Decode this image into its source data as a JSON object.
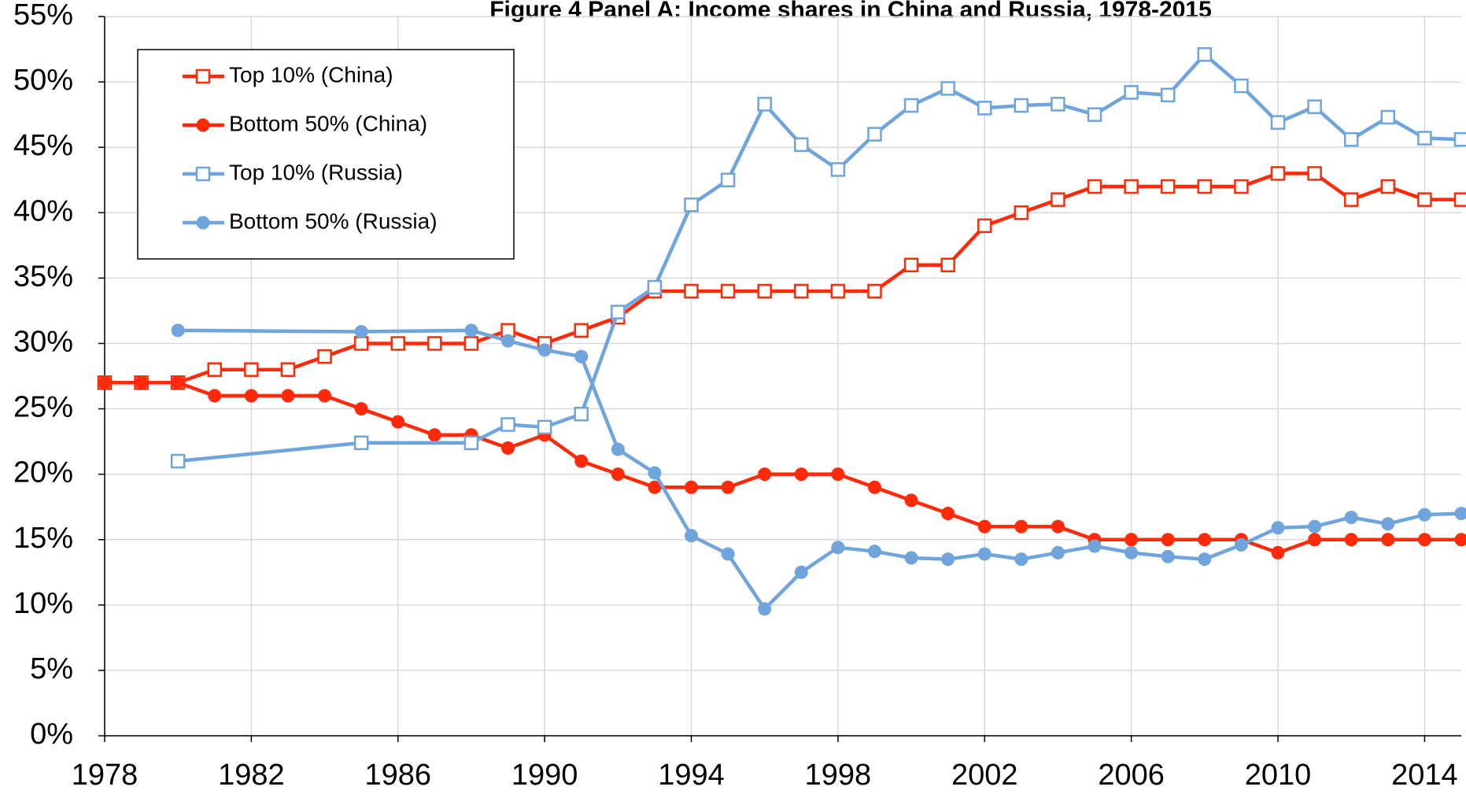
{
  "chart_data": {
    "type": "line",
    "title": "Figure 4 Panel A: Income shares in China and Russia, 1978-2015",
    "xlim": [
      1978,
      2015
    ],
    "xticks": [
      1978,
      1982,
      1986,
      1990,
      1994,
      1998,
      2002,
      2006,
      2010,
      2014
    ],
    "ylim": [
      0,
      55
    ],
    "yticks": [
      {
        "value": 0,
        "label": "0%"
      },
      {
        "value": 5,
        "label": "5%"
      },
      {
        "value": 10,
        "label": "10%"
      },
      {
        "value": 15,
        "label": "15%"
      },
      {
        "value": 20,
        "label": "20%"
      },
      {
        "value": 25,
        "label": "25%"
      },
      {
        "value": 30,
        "label": "30%"
      },
      {
        "value": 35,
        "label": "35%"
      },
      {
        "value": 40,
        "label": "40%"
      },
      {
        "value": 45,
        "label": "45%"
      },
      {
        "value": 50,
        "label": "50%"
      },
      {
        "value": 55,
        "label": "55%"
      }
    ],
    "grid": true,
    "legend": "upper left",
    "series": [
      {
        "name": "Top 10% (China)",
        "color": "#ff2a0a",
        "marker": "square-open",
        "x": [
          1978,
          1979,
          1980,
          1981,
          1982,
          1983,
          1984,
          1985,
          1986,
          1987,
          1988,
          1989,
          1990,
          1991,
          1992,
          1993,
          1994,
          1995,
          1996,
          1997,
          1998,
          1999,
          2000,
          2001,
          2002,
          2003,
          2004,
          2005,
          2006,
          2007,
          2008,
          2009,
          2010,
          2011,
          2012,
          2013,
          2014,
          2015
        ],
        "values": [
          27,
          27,
          27,
          28,
          28,
          28,
          29,
          30,
          30,
          30,
          30,
          31,
          30,
          31,
          32,
          34,
          34,
          34,
          34,
          34,
          34,
          34,
          36,
          36,
          39,
          40,
          41,
          42,
          42,
          42,
          42,
          42,
          43,
          43,
          41,
          42,
          41,
          41
        ]
      },
      {
        "name": "Bottom 50% (China)",
        "color": "#ff2a0a",
        "marker": "circle",
        "x": [
          1978,
          1979,
          1980,
          1981,
          1982,
          1983,
          1984,
          1985,
          1986,
          1987,
          1988,
          1989,
          1990,
          1991,
          1992,
          1993,
          1994,
          1995,
          1996,
          1997,
          1998,
          1999,
          2000,
          2001,
          2002,
          2003,
          2004,
          2005,
          2006,
          2007,
          2008,
          2009,
          2010,
          2011,
          2012,
          2013,
          2014,
          2015
        ],
        "values": [
          27,
          27,
          27,
          26,
          26,
          26,
          26,
          25,
          24,
          23,
          23,
          22,
          23,
          21,
          20,
          19,
          19,
          19,
          20,
          20,
          20,
          19,
          18,
          17,
          16,
          16,
          16,
          15,
          15,
          15,
          15,
          15,
          14,
          15,
          15,
          15,
          15,
          15
        ]
      },
      {
        "name": "Top 10% (Russia)",
        "color": "#6fa4dc",
        "marker": "square-open",
        "x": [
          1980,
          1985,
          1988,
          1989,
          1990,
          1991,
          1992,
          1993,
          1994,
          1995,
          1996,
          1997,
          1998,
          1999,
          2000,
          2001,
          2002,
          2003,
          2004,
          2005,
          2006,
          2007,
          2008,
          2009,
          2010,
          2011,
          2012,
          2013,
          2014,
          2015
        ],
        "values": [
          21.0,
          22.4,
          22.4,
          23.8,
          23.6,
          24.6,
          32.4,
          34.3,
          40.6,
          42.5,
          48.3,
          45.2,
          43.3,
          46.0,
          48.2,
          49.5,
          48.0,
          48.2,
          48.3,
          47.5,
          49.2,
          49.0,
          52.1,
          49.7,
          46.9,
          48.1,
          45.6,
          47.3,
          45.7,
          45.6
        ]
      },
      {
        "name": "Bottom 50% (Russia)",
        "color": "#6fa4dc",
        "marker": "circle",
        "x": [
          1980,
          1985,
          1988,
          1989,
          1990,
          1991,
          1992,
          1993,
          1994,
          1995,
          1996,
          1997,
          1998,
          1999,
          2000,
          2001,
          2002,
          2003,
          2004,
          2005,
          2006,
          2007,
          2008,
          2009,
          2010,
          2011,
          2012,
          2013,
          2014,
          2015
        ],
        "values": [
          31.0,
          30.9,
          31.0,
          30.2,
          29.5,
          29.0,
          21.9,
          20.1,
          15.3,
          13.9,
          9.7,
          12.5,
          14.4,
          14.1,
          13.6,
          13.5,
          13.9,
          13.5,
          14.0,
          14.5,
          14.0,
          13.7,
          13.5,
          14.6,
          15.9,
          16.0,
          16.7,
          16.2,
          16.9,
          17.0
        ]
      }
    ]
  }
}
